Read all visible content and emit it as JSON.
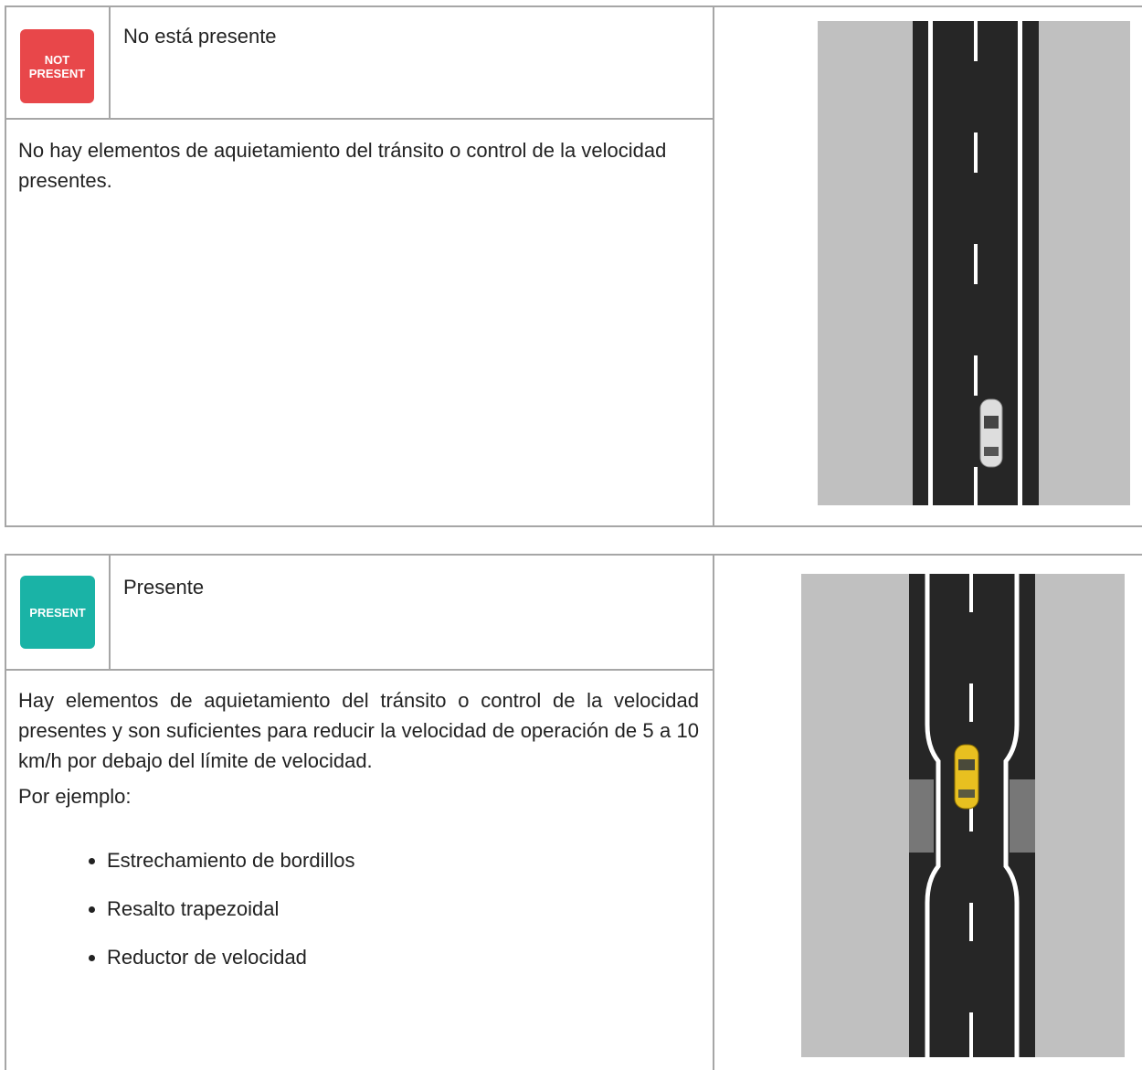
{
  "sections": [
    {
      "badge": [
        "NOT",
        "PRESENT"
      ],
      "title": "No está presente",
      "description": [
        "No hay elementos de aquietamiento del tránsito o control de la velocidad presentes."
      ]
    },
    {
      "badge": [
        "PRESENT"
      ],
      "title": "Presente",
      "description": [
        "Hay elementos de aquietamiento del tránsito o control de la velocidad presentes y son suficientes para reducir la velocidad de operación de 5 a 10 km/h por debajo del límite de velocidad.",
        "Por ejemplo:"
      ],
      "examples": [
        "Estrechamiento de bordillos",
        "Resalto trapezoidal",
        "Reductor de velocidad"
      ]
    }
  ]
}
